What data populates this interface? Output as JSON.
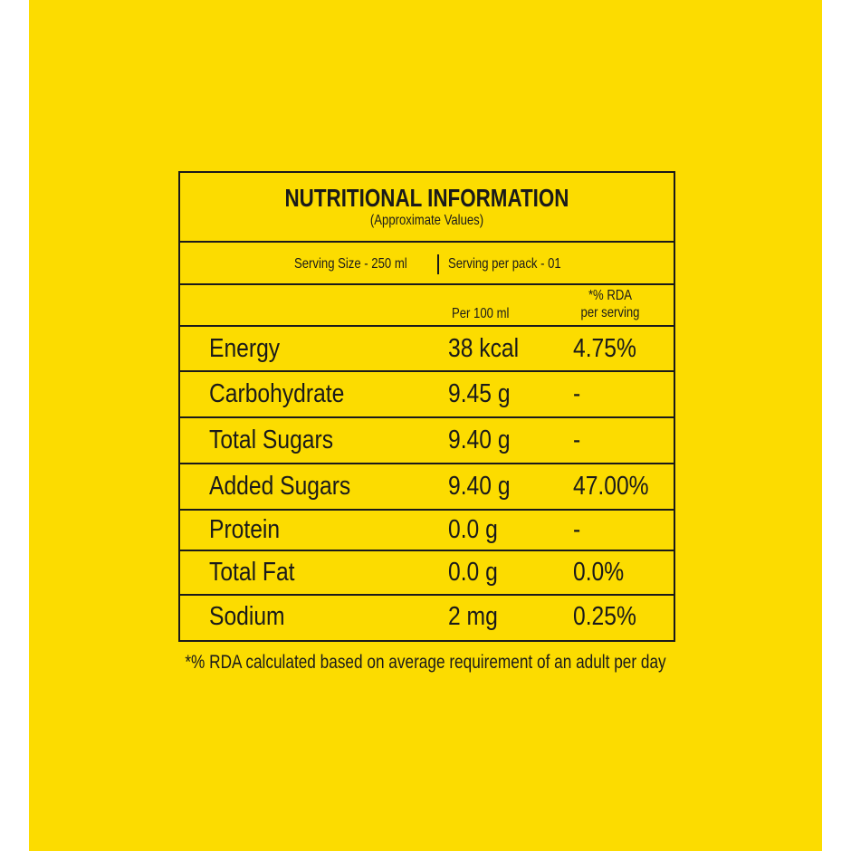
{
  "header": {
    "title": "NUTRITIONAL INFORMATION",
    "subtitle": "(Approximate Values)"
  },
  "serving": {
    "size": "Serving Size - 250 ml",
    "per_pack": "Serving per pack - 01"
  },
  "columns": {
    "per100": "Per 100 ml",
    "rda": [
      "*% RDA",
      "per serving"
    ]
  },
  "table": {
    "rows": [
      [
        "Energy",
        "38 kcal",
        "4.75%"
      ],
      [
        "Carbohydrate",
        "9.45 g",
        "-"
      ],
      [
        "Total Sugars",
        "9.40 g",
        "-"
      ],
      [
        "Added Sugars",
        "9.40 g",
        "47.00%"
      ],
      [
        "Protein",
        "0.0 g",
        "-"
      ],
      [
        "Total Fat",
        "0.0 g",
        "0.0%"
      ],
      [
        "Sodium",
        "2 mg",
        "0.25%"
      ]
    ]
  },
  "footnote": "*% RDA calculated based on average requirement of an adult per day"
}
